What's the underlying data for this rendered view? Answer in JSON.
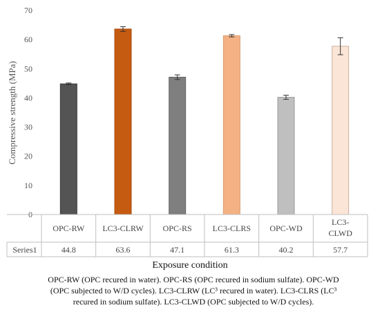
{
  "chart_data": {
    "type": "bar",
    "categories": [
      "OPC-RW",
      "LC3-CLRW",
      "OPC-RS",
      "LC3-CLRS",
      "OPC-WD",
      "LC3-CLWD"
    ],
    "category_lines": [
      [
        "OPC-RW"
      ],
      [
        "LC3-CLRW"
      ],
      [
        "OPC-RS"
      ],
      [
        "LC3-CLRS"
      ],
      [
        "OPC-WD"
      ],
      [
        "LC3-",
        "CLWD"
      ]
    ],
    "series": [
      {
        "name": "Series1",
        "values": [
          44.8,
          63.6,
          47.1,
          61.3,
          40.2,
          57.7
        ],
        "value_labels": [
          "44.8",
          "63.6",
          "47.1",
          "61.3",
          "40.2",
          "57.7"
        ],
        "error": [
          0.3,
          0.8,
          0.8,
          0.4,
          0.7,
          2.9
        ],
        "colors": [
          "#545454",
          "#c55a11",
          "#7f7f7f",
          "#f4b183",
          "#bfbfbf",
          "#fbe5d6"
        ],
        "stroke_colors": [
          "#3a3a3a",
          "#a84a0c",
          "#666666",
          "#d99a6c",
          "#9a9a9a",
          "#c9b0a0"
        ]
      }
    ],
    "ylabel": "Compressive strength (MPa)",
    "xlabel": "Exposure condition",
    "ylim": [
      0,
      70
    ],
    "yticks": [
      0,
      10,
      20,
      30,
      40,
      50,
      60,
      70
    ],
    "grid": false,
    "data_table": true
  },
  "caption": "OPC-RW (OPC recured in water). OPC-RS (OPC recured in sodium sulfate). OPC-WD (OPC subjected to W/D cycles). LC3-CLRW (LC³ recured in water). LC3-CLRS (LC³ recured in sodium sulfate). LC3-CLWD (OPC subjected to W/D cycles)."
}
